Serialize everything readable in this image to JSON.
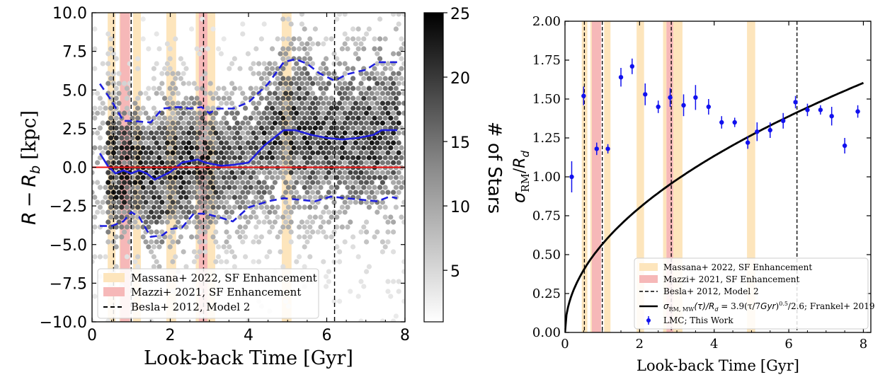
{
  "chart_data": [
    {
      "type": "scatter",
      "subtype": "hexbin",
      "xlabel_prefix": "Look-back Time",
      "xlabel_unit": "[Gyr]",
      "ylabel_var": "R",
      "ylabel_minus": "−",
      "ylabel_sub": "R",
      "ylabel_subscript": "b",
      "ylabel_unit": "[kpc]",
      "xlim": [
        0,
        8
      ],
      "ylim": [
        -10,
        10
      ],
      "xticks": [
        0,
        2,
        4,
        6,
        8
      ],
      "xtick_labels": [
        "0",
        "2",
        "4",
        "6",
        "8"
      ],
      "yticks": [
        -10,
        -7.5,
        -5,
        -2.5,
        0,
        2.5,
        5,
        7.5,
        10
      ],
      "ytick_labels": [
        "−10.0",
        "−7.5",
        "−5.0",
        "−2.5",
        "0.0",
        "2.5",
        "5.0",
        "7.5",
        "10.0"
      ],
      "colorbar": {
        "label": "# of Stars",
        "range": [
          1,
          25
        ],
        "ticks": [
          5,
          10,
          15,
          20,
          25
        ],
        "tick_labels": [
          "5",
          "10",
          "15",
          "20",
          "25"
        ]
      },
      "bands_massana": [
        [
          0.4,
          0.6
        ],
        [
          0.7,
          0.85
        ],
        [
          1.05,
          1.25
        ],
        [
          1.9,
          2.15
        ],
        [
          2.65,
          2.75
        ],
        [
          2.95,
          3.15
        ],
        [
          4.85,
          5.1
        ]
      ],
      "bands_mazzi": [
        [
          0.72,
          0.97
        ],
        [
          2.73,
          2.95
        ]
      ],
      "vlines_besla": [
        0.55,
        1.0,
        2.85,
        6.2
      ],
      "series": [
        {
          "name": "median",
          "style": "solid",
          "color": "#1f1fdd",
          "x": [
            0.2,
            0.4,
            0.6,
            0.8,
            1.0,
            1.2,
            1.4,
            1.6,
            2.0,
            2.3,
            2.7,
            2.9,
            3.1,
            3.3,
            3.6,
            4.0,
            4.4,
            4.9,
            5.2,
            5.6,
            6.0,
            6.4,
            6.8,
            7.2,
            7.4,
            7.8
          ],
          "y": [
            0.9,
            0.1,
            -0.4,
            -0.2,
            -0.4,
            -0.2,
            -0.4,
            -0.8,
            -0.3,
            0.3,
            0.5,
            0.3,
            0.2,
            0.1,
            0.15,
            0.3,
            1.4,
            2.4,
            2.4,
            2.1,
            1.9,
            1.8,
            1.9,
            2.1,
            2.4,
            2.4
          ]
        },
        {
          "name": "upper",
          "style": "dashed",
          "color": "#1f1fdd",
          "x": [
            0.2,
            0.5,
            0.8,
            1.0,
            1.5,
            1.8,
            2.2,
            2.5,
            2.8,
            3.0,
            3.2,
            3.6,
            4.0,
            4.5,
            4.9,
            5.2,
            5.5,
            5.8,
            6.2,
            6.5,
            6.8,
            7.0,
            7.3,
            7.8
          ],
          "y": [
            5.4,
            4.3,
            3.0,
            3.0,
            2.9,
            3.8,
            3.9,
            3.8,
            3.9,
            3.5,
            3.8,
            3.8,
            4.2,
            5.4,
            6.8,
            7.0,
            6.7,
            6.1,
            5.6,
            6.0,
            6.2,
            6.3,
            6.8,
            6.8
          ]
        },
        {
          "name": "lower",
          "style": "dashed",
          "color": "#1f1fdd",
          "x": [
            0.2,
            0.5,
            0.8,
            1.0,
            1.2,
            1.5,
            1.8,
            2.0,
            2.3,
            2.6,
            2.9,
            3.2,
            3.6,
            4.0,
            4.5,
            4.9,
            5.3,
            5.7,
            6.1,
            6.5,
            6.9,
            7.3,
            7.6,
            7.8
          ],
          "y": [
            -3.8,
            -3.8,
            -3.5,
            -2.9,
            -3.2,
            -4.5,
            -4.4,
            -4.0,
            -3.9,
            -3.0,
            -3.0,
            -3.2,
            -3.5,
            -2.6,
            -2.2,
            -2.0,
            -2.1,
            -2.2,
            -1.9,
            -2.0,
            -2.1,
            -2.2,
            -1.9,
            -2.0
          ]
        },
        {
          "name": "zero",
          "style": "solid",
          "color": "#ee1111",
          "x": [
            0,
            8
          ],
          "y": [
            0,
            0
          ]
        }
      ],
      "legend": [
        {
          "label": "Massana+ 2022, SF Enhancement",
          "kind": "patch",
          "color": "#fde5bc"
        },
        {
          "label": "Mazzi+ 2021, SF Enhancement",
          "kind": "patch",
          "color": "#f6b8b8"
        },
        {
          "label": "Besla+ 2012, Model 2",
          "kind": "dashed-line",
          "color": "#000000"
        }
      ],
      "legend_position": "lower-left"
    },
    {
      "type": "scatter",
      "subtype": "errorbar + model curve",
      "xlabel_prefix": "Look-back Time",
      "xlabel_unit": "[Gyr]",
      "ylabel_sigma": "σ",
      "ylabel_sigma_sub": "RM",
      "ylabel_slash": "/",
      "ylabel_R": "R",
      "ylabel_R_sub": "d",
      "xlim": [
        0,
        8.2
      ],
      "ylim": [
        0,
        2.0
      ],
      "xticks": [
        0,
        2,
        4,
        6,
        8
      ],
      "xtick_labels": [
        "0",
        "2",
        "4",
        "6",
        "8"
      ],
      "yticks": [
        0,
        0.25,
        0.5,
        0.75,
        1.0,
        1.25,
        1.5,
        1.75,
        2.0
      ],
      "ytick_labels": [
        "0.00",
        "0.25",
        "0.50",
        "0.75",
        "1.00",
        "1.25",
        "1.50",
        "1.75",
        "2.00"
      ],
      "bands_massana": [
        [
          0.45,
          0.6
        ],
        [
          0.68,
          0.72
        ],
        [
          1.05,
          1.22
        ],
        [
          1.92,
          2.12
        ],
        [
          2.63,
          2.72
        ],
        [
          2.9,
          3.15
        ],
        [
          4.88,
          5.1
        ]
      ],
      "bands_mazzi": [
        [
          0.72,
          0.97
        ],
        [
          2.72,
          2.9
        ]
      ],
      "vlines_besla": [
        0.52,
        1.0,
        2.85,
        6.22
      ],
      "points": {
        "name": "LMC; This Work",
        "color": "#1111ee",
        "x": [
          0.18,
          0.5,
          0.85,
          1.15,
          1.5,
          1.8,
          2.15,
          2.5,
          2.82,
          3.18,
          3.5,
          3.85,
          4.2,
          4.55,
          4.9,
          5.15,
          5.5,
          5.85,
          6.18,
          6.5,
          6.85,
          7.15,
          7.5,
          7.85
        ],
        "y": [
          1.0,
          1.52,
          1.18,
          1.18,
          1.64,
          1.71,
          1.53,
          1.45,
          1.51,
          1.46,
          1.51,
          1.45,
          1.35,
          1.35,
          1.22,
          1.29,
          1.3,
          1.36,
          1.48,
          1.43,
          1.43,
          1.39,
          1.2,
          1.42
        ],
        "err": [
          0.1,
          0.06,
          0.04,
          0.03,
          0.06,
          0.05,
          0.07,
          0.04,
          0.06,
          0.07,
          0.08,
          0.05,
          0.04,
          0.03,
          0.04,
          0.06,
          0.05,
          0.05,
          0.04,
          0.04,
          0.03,
          0.06,
          0.05,
          0.04
        ]
      },
      "model_curve": {
        "name": "Frankel+ 2019",
        "formula": "sigma = 3.9*(t/7)^0.5/2.6",
        "x_range": [
          0,
          8
        ]
      },
      "legend": [
        {
          "label": "Massana+ 2022, SF Enhancement",
          "kind": "patch",
          "color": "#fde5bc"
        },
        {
          "label": "Mazzi+ 2021, SF Enhancement",
          "kind": "patch",
          "color": "#f6b8b8"
        },
        {
          "label": "Besla+ 2012, Model 2",
          "kind": "dashed-line",
          "color": "#000000"
        },
        {
          "kind": "solid-line",
          "color": "#000000",
          "label_parts": {
            "sigma": "σ",
            "sub": "RM, MW",
            "tau_open": "(τ)/",
            "R": "R",
            "Rsub": "d",
            "eq": " = 3.9(τ/7",
            "gyr": "Gyr",
            "close": ")",
            "pow": "0.5",
            "tail": "/2.6; Frankel+ 2019"
          }
        },
        {
          "label": "LMC; This Work",
          "kind": "errorbar",
          "color": "#1111ee"
        }
      ],
      "legend_position": "lower-right"
    }
  ]
}
